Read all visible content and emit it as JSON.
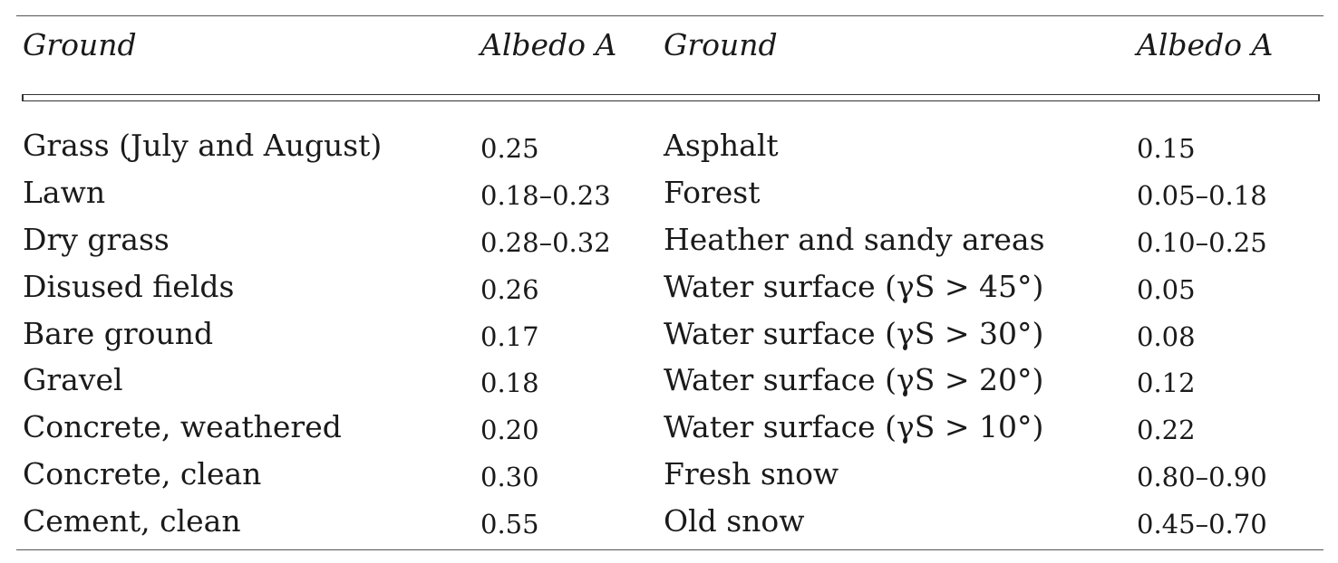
{
  "table": {
    "header": {
      "col1": "Ground",
      "col2": "Albedo A",
      "col3": "Ground",
      "col4": "Albedo A"
    },
    "rows": [
      {
        "ground_left": "Grass (July and August)",
        "albedo_left": "0.25",
        "ground_right": "Asphalt",
        "albedo_right": "0.15"
      },
      {
        "ground_left": "Lawn",
        "albedo_left": "0.18–0.23",
        "ground_right": "Forest",
        "albedo_right": "0.05–0.18"
      },
      {
        "ground_left": "Dry grass",
        "albedo_left": "0.28–0.32",
        "ground_right": "Heather and sandy areas",
        "albedo_right": "0.10–0.25"
      },
      {
        "ground_left": "Disused fields",
        "albedo_left": "0.26",
        "ground_right": "Water surface (γS > 45°)",
        "albedo_right": "0.05"
      },
      {
        "ground_left": "Bare ground",
        "albedo_left": "0.17",
        "ground_right": "Water surface (γS > 30°)",
        "albedo_right": "0.08"
      },
      {
        "ground_left": "Gravel",
        "albedo_left": "0.18",
        "ground_right": "Water surface (γS > 20°)",
        "albedo_right": "0.12"
      },
      {
        "ground_left": "Concrete, weathered",
        "albedo_left": "0.20",
        "ground_right": "Water surface (γS > 10°)",
        "albedo_right": "0.22"
      },
      {
        "ground_left": "Concrete, clean",
        "albedo_left": "0.30",
        "ground_right": "Fresh snow",
        "albedo_right": "0.80–0.90"
      },
      {
        "ground_left": "Cement, clean",
        "albedo_left": "0.55",
        "ground_right": "Old snow",
        "albedo_right": "0.45–0.70"
      }
    ]
  }
}
